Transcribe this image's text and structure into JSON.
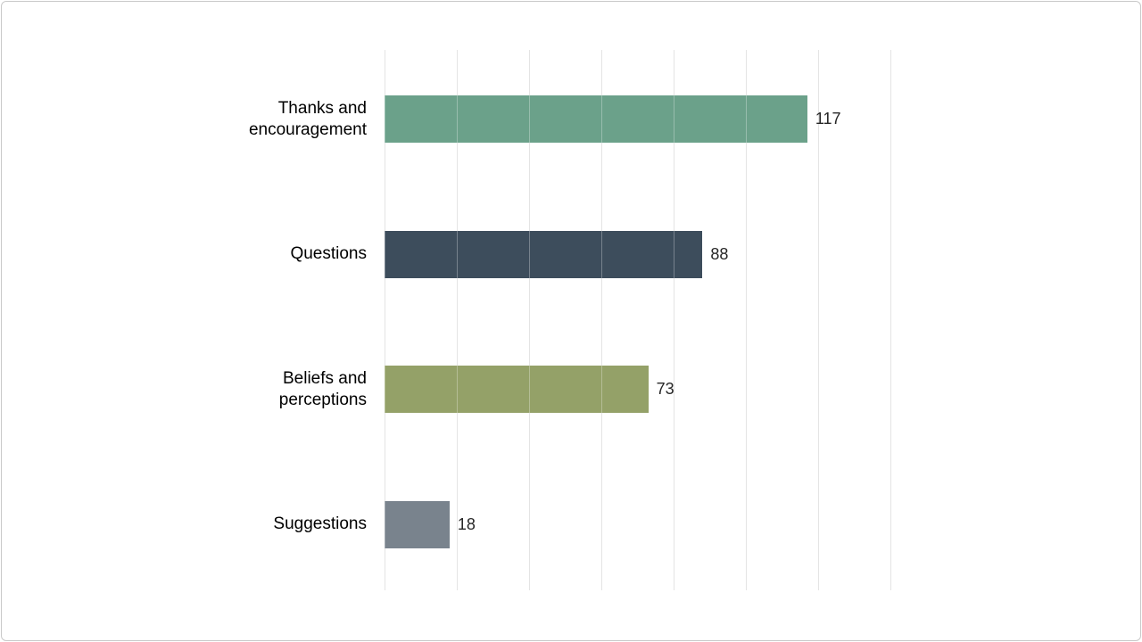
{
  "page": {
    "background_color": "#ffffff",
    "border_color": "#c9c9c9"
  },
  "chart_data": {
    "type": "bar",
    "orientation": "horizontal",
    "title": "",
    "xlabel": "",
    "ylabel": "",
    "categories": [
      "Thanks and encouragement",
      "Questions",
      "Beliefs and perceptions",
      "Suggestions"
    ],
    "values": [
      117,
      88,
      73,
      18
    ],
    "data_labels": [
      "117",
      "88",
      "73",
      "18"
    ],
    "bar_colors": [
      "#6ba18a",
      "#3d4d5c",
      "#94a168",
      "#79838d"
    ],
    "xlim": [
      0,
      140
    ],
    "gridline_interval": 20,
    "grid": true,
    "legend": "none",
    "gridline_color": "#d9d9d9",
    "category_label_color": "#000000",
    "value_label_color": "#262626"
  }
}
